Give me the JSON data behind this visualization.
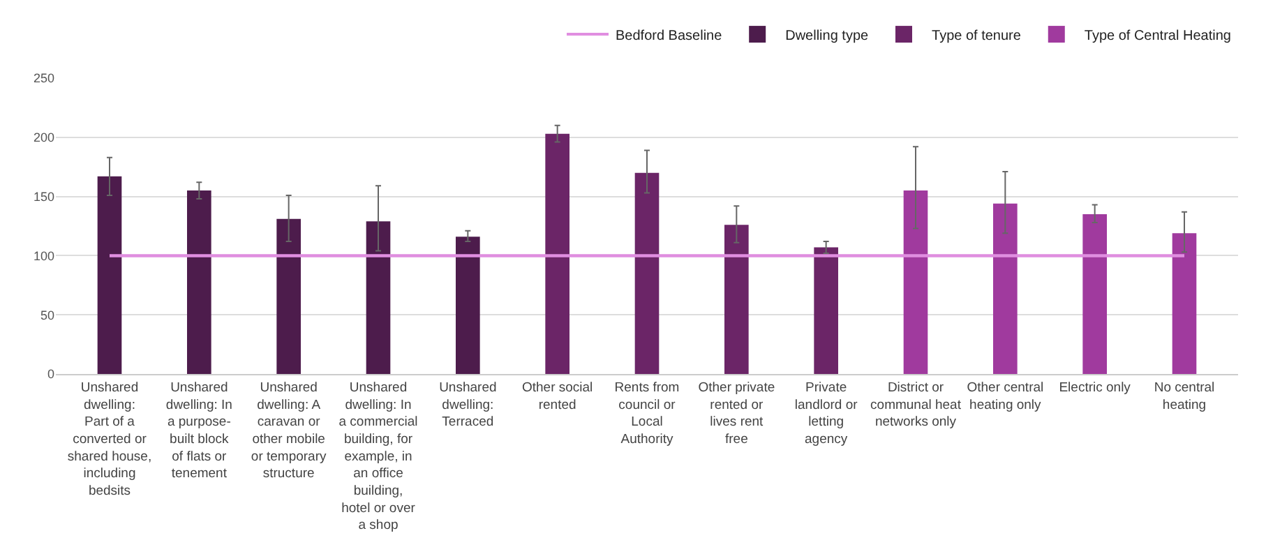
{
  "chart_data": {
    "type": "bar",
    "categories": [
      "Unshared dwelling: Part of a converted or shared house, including bedsits",
      "Unshared dwelling: In a purpose-built block of flats or tenement",
      "Unshared dwelling: A caravan or other mobile or temporary structure",
      "Unshared dwelling: In a commercial building, for example, in an office building, hotel or over a shop",
      "Unshared dwelling: Terraced",
      "Other social rented",
      "Rents from council or Local Authority",
      "Other private rented or lives rent free",
      "Private landlord or letting agency",
      "District or communal heat networks only",
      "Other central heating only",
      "Electric only",
      "No central heating"
    ],
    "series": [
      {
        "name": "Bedford Baseline",
        "type": "line",
        "color": "#e08ee0",
        "values": [
          100,
          100,
          100,
          100,
          100,
          100,
          100,
          100,
          100,
          100,
          100,
          100,
          100
        ]
      },
      {
        "name": "Dwelling type",
        "color": "#4d1c4c",
        "values": [
          167,
          155,
          131,
          129,
          116,
          null,
          null,
          null,
          null,
          null,
          null,
          null,
          null
        ],
        "errors": [
          [
            151,
            183
          ],
          [
            148,
            162
          ],
          [
            112,
            151
          ],
          [
            104,
            159
          ],
          [
            112,
            121
          ],
          null,
          null,
          null,
          null,
          null,
          null,
          null,
          null
        ]
      },
      {
        "name": "Type of tenure",
        "color": "#6b2567",
        "values": [
          null,
          null,
          null,
          null,
          null,
          203,
          170,
          126,
          107,
          null,
          null,
          null,
          null
        ],
        "errors": [
          null,
          null,
          null,
          null,
          null,
          [
            196,
            210
          ],
          [
            153,
            189
          ],
          [
            111,
            142
          ],
          [
            102,
            112
          ],
          null,
          null,
          null,
          null
        ]
      },
      {
        "name": "Type of Central Heating",
        "color": "#a03a9e",
        "values": [
          null,
          null,
          null,
          null,
          null,
          null,
          null,
          null,
          null,
          155,
          144,
          135,
          119
        ],
        "errors": [
          null,
          null,
          null,
          null,
          null,
          null,
          null,
          null,
          null,
          [
            123,
            192
          ],
          [
            119,
            171
          ],
          [
            128,
            143
          ],
          [
            103,
            137
          ]
        ]
      }
    ],
    "ylim": [
      0,
      250
    ],
    "yticks": [
      0,
      50,
      100,
      150,
      200,
      250
    ],
    "grid": "y",
    "legend": "top"
  }
}
